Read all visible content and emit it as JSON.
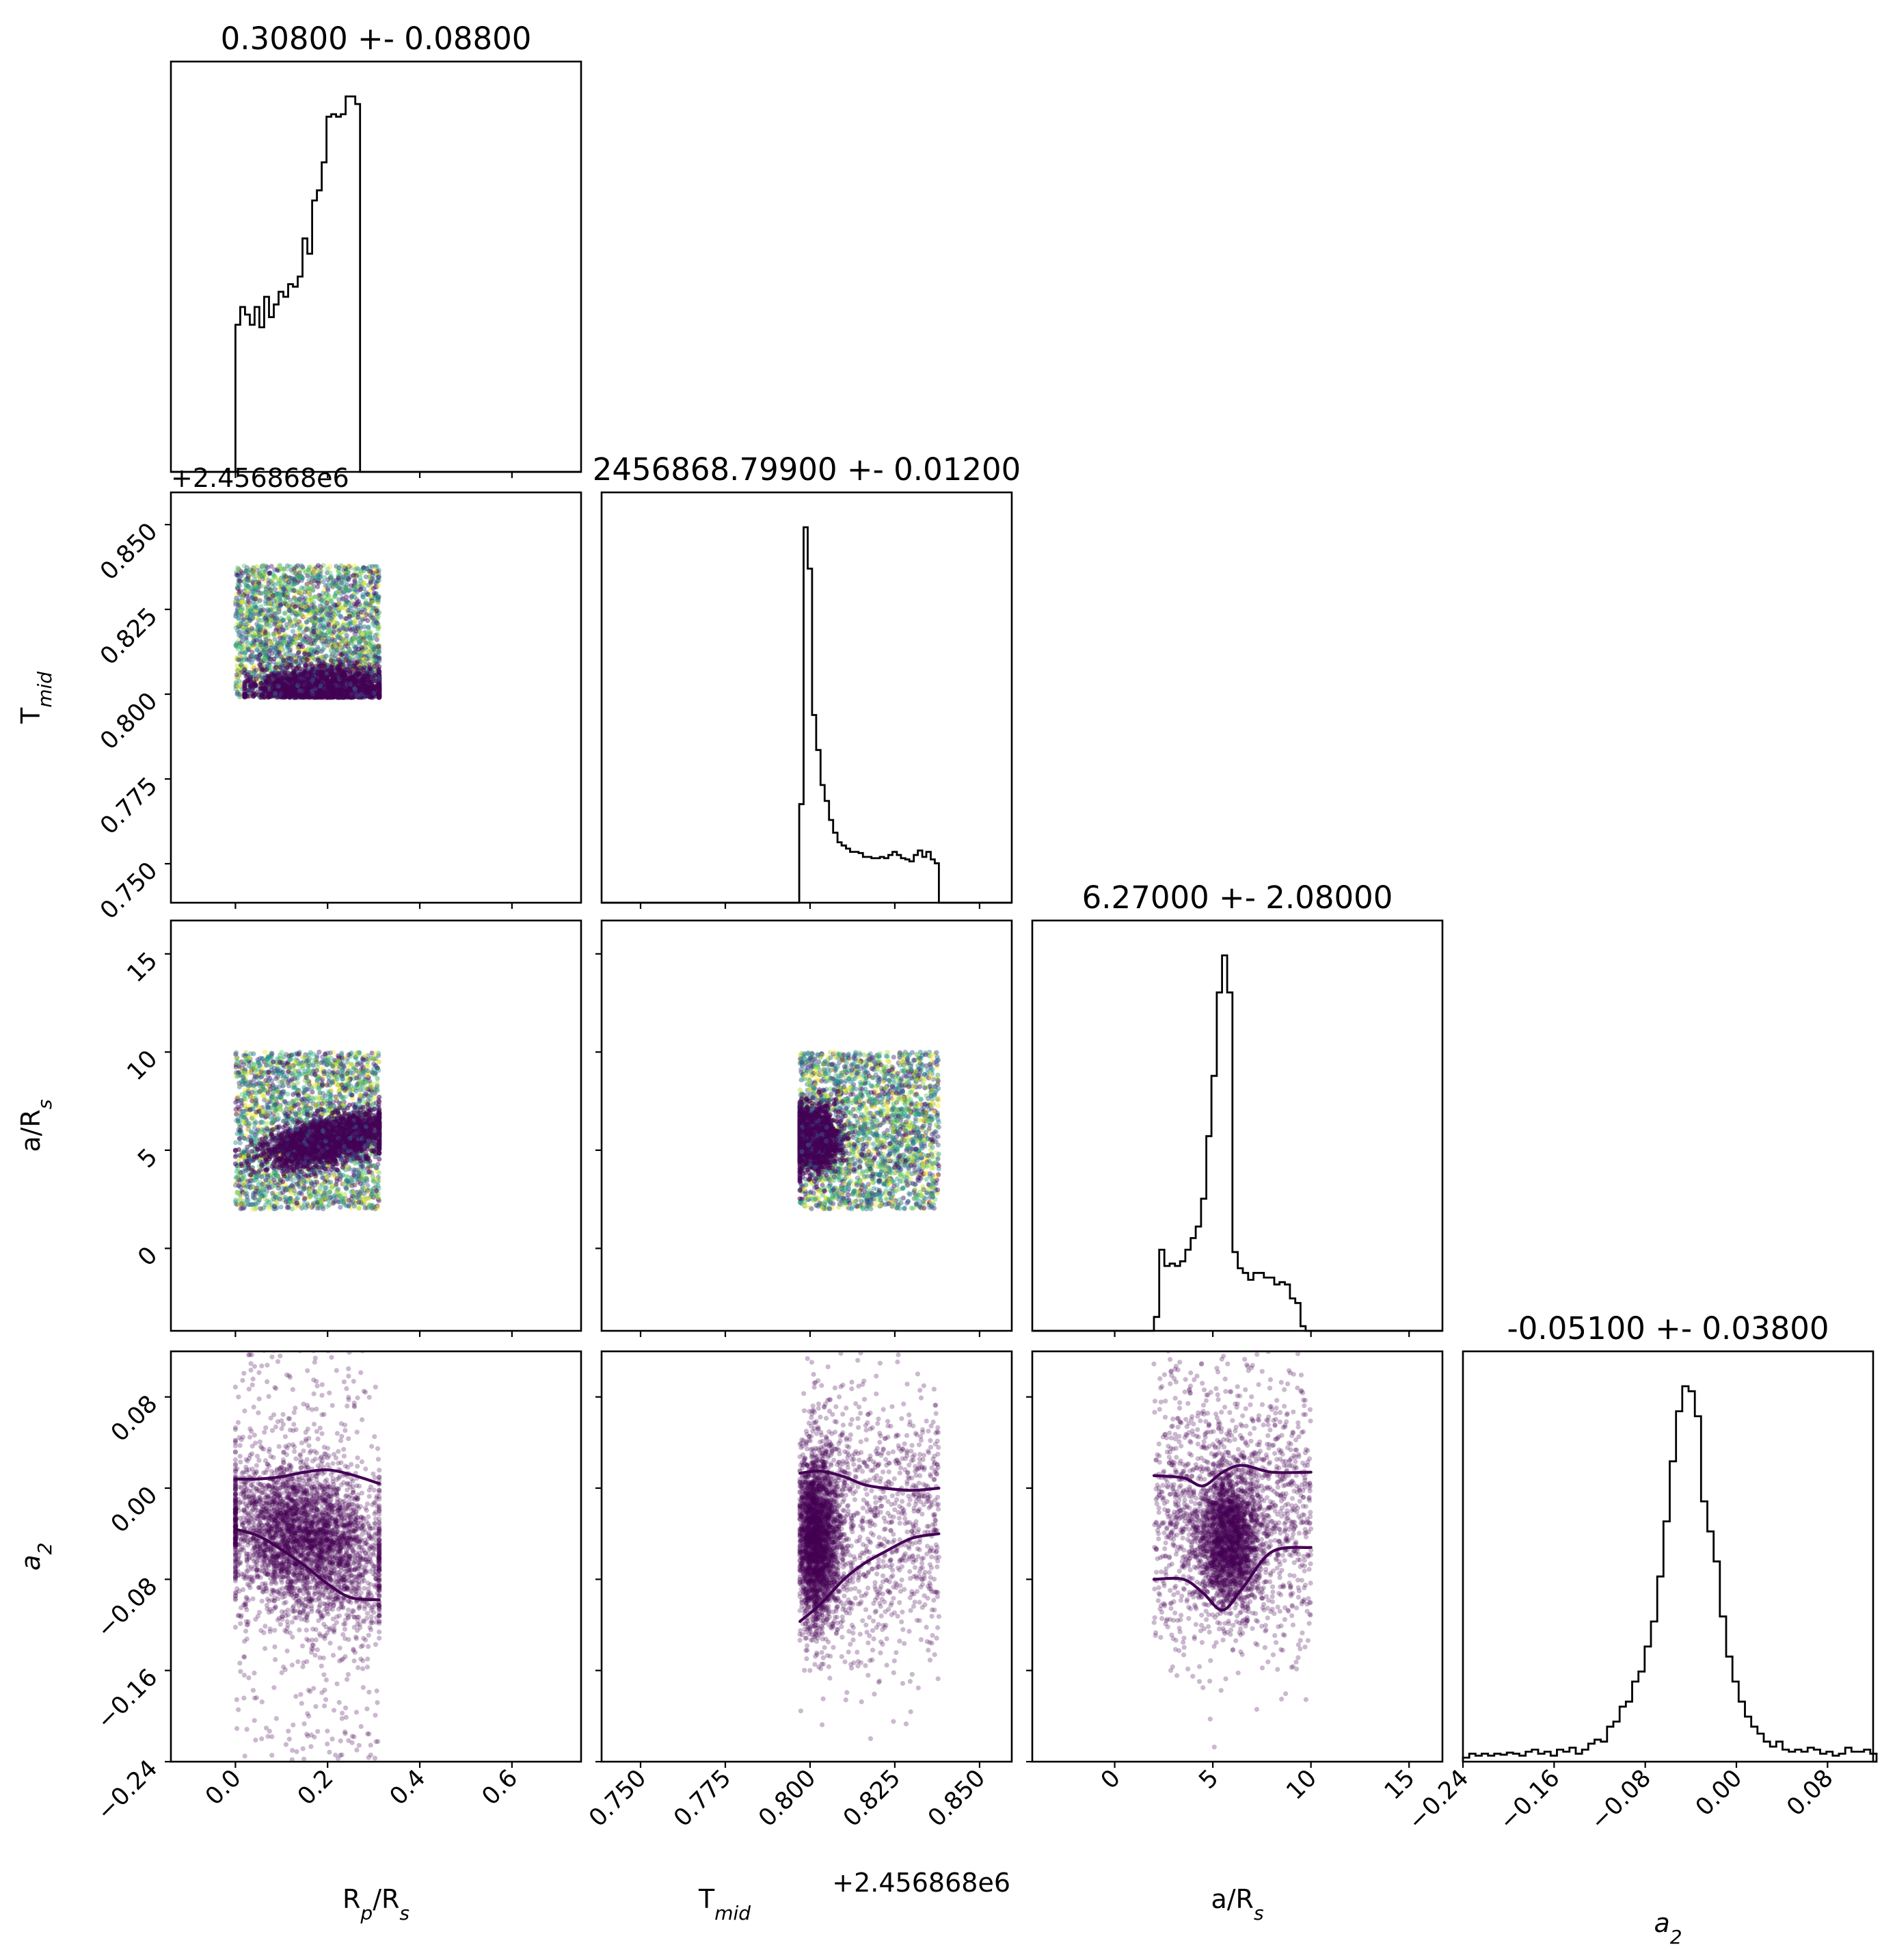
{
  "chart_data": {
    "type": "scatter",
    "layout": "corner",
    "parameters": [
      "R_p/R_s",
      "T_mid",
      "a/R_s",
      "a_2"
    ],
    "axis_labels": {
      "R_p/R_s": {
        "main": "R",
        "sub": "p",
        "tail": "/R",
        "sub2": "s"
      },
      "T_mid": {
        "main": "T",
        "sub": "mid"
      },
      "a/R_s": {
        "main": "a/R",
        "sub": "s"
      },
      "a_2": {
        "main": "a",
        "sub": "2",
        "italic": true
      }
    },
    "titles": [
      "0.30800 +- 0.08800",
      "2456868.79900 +- 0.01200",
      "6.27000 +- 2.08000",
      "-0.05100 +- 0.03800"
    ],
    "offset_text": "+2.456868e6",
    "ranges": {
      "R_p/R_s": [
        -0.14,
        0.75
      ],
      "T_mid": [
        0.7385,
        0.8595
      ],
      "a/R_s": [
        -4.2,
        16.7
      ],
      "a_2": [
        -0.24,
        0.12
      ]
    },
    "ticks": {
      "R_p/R_s": {
        "values": [
          0.0,
          0.2,
          0.4,
          0.6
        ],
        "labels": [
          "0.0",
          "0.2",
          "0.4",
          "0.6"
        ]
      },
      "T_mid": {
        "values": [
          0.75,
          0.775,
          0.8,
          0.825,
          0.85
        ],
        "labels": [
          "0.750",
          "0.775",
          "0.800",
          "0.825",
          "0.850"
        ]
      },
      "a/R_s": {
        "values": [
          0,
          5,
          10,
          15
        ],
        "labels": [
          "0",
          "5",
          "10",
          "15"
        ]
      },
      "a_2": {
        "values": [
          -0.24,
          -0.16,
          -0.08,
          0.0,
          0.08
        ],
        "labels": [
          "−0.24",
          "−0.16",
          "−0.08",
          "0.00",
          "0.08"
        ]
      }
    },
    "histograms": {
      "R_p/R_s": {
        "bin_edges": [
          0.0,
          0.0104,
          0.0208,
          0.0312,
          0.0416,
          0.052,
          0.0624,
          0.0728,
          0.0832,
          0.0936,
          0.104,
          0.1144,
          0.1248,
          0.1352,
          0.1456,
          0.156,
          0.1664,
          0.1768,
          0.1872,
          0.1976,
          0.208,
          0.2184,
          0.2288,
          0.2392,
          0.2496,
          0.26,
          0.2704,
          0.2808,
          0.2912,
          0.3016,
          0.312
        ],
        "counts": [
          290,
          325,
          310,
          290,
          325,
          285,
          345,
          305,
          330,
          355,
          345,
          370,
          365,
          385,
          460,
          430,
          535,
          555,
          610,
          700,
          705,
          700,
          705,
          740,
          740,
          725,
          0,
          0,
          0,
          0
        ]
      },
      "T_mid": {
        "bin_edges": [
          0.7968,
          0.7981,
          0.7993,
          0.8006,
          0.8018,
          0.8031,
          0.8043,
          0.8056,
          0.8068,
          0.8081,
          0.8093,
          0.8106,
          0.8118,
          0.8131,
          0.8143,
          0.8156,
          0.8168,
          0.8181,
          0.8193,
          0.8206,
          0.8218,
          0.8231,
          0.8243,
          0.8256,
          0.8268,
          0.8281,
          0.8293,
          0.8306,
          0.8318,
          0.8331,
          0.8343,
          0.8356,
          0.8368,
          0.838
        ],
        "counts": [
          155,
          590,
          525,
          295,
          240,
          185,
          160,
          130,
          110,
          95,
          90,
          85,
          80,
          80,
          78,
          72,
          72,
          70,
          70,
          72,
          70,
          75,
          80,
          75,
          70,
          68,
          65,
          75,
          82,
          72,
          80,
          68,
          62
        ]
      },
      "a/R_s": {
        "bin_edges": [
          2.0,
          2.27,
          2.53,
          2.8,
          3.07,
          3.33,
          3.6,
          3.87,
          4.13,
          4.4,
          4.67,
          4.93,
          5.2,
          5.47,
          5.73,
          6.0,
          6.27,
          6.53,
          6.8,
          7.07,
          7.33,
          7.6,
          7.87,
          8.13,
          8.4,
          8.67,
          8.93,
          9.2,
          9.47,
          9.73,
          10.0
        ],
        "counts": [
          30,
          175,
          140,
          145,
          140,
          150,
          175,
          200,
          225,
          285,
          420,
          550,
          730,
          810,
          730,
          170,
          135,
          125,
          110,
          125,
          125,
          115,
          115,
          100,
          105,
          100,
          70,
          60,
          10,
          0
        ]
      },
      "a_2": {
        "bin_edges": [
          -0.24,
          -0.2345,
          -0.229,
          -0.2235,
          -0.218,
          -0.2125,
          -0.207,
          -0.2015,
          -0.196,
          -0.1905,
          -0.185,
          -0.1795,
          -0.174,
          -0.1685,
          -0.163,
          -0.1575,
          -0.152,
          -0.1465,
          -0.141,
          -0.1355,
          -0.13,
          -0.1245,
          -0.119,
          -0.1135,
          -0.108,
          -0.1025,
          -0.097,
          -0.0915,
          -0.086,
          -0.0805,
          -0.075,
          -0.0695,
          -0.064,
          -0.0585,
          -0.053,
          -0.0475,
          -0.042,
          -0.0365,
          -0.031,
          -0.0255,
          -0.02,
          -0.0145,
          -0.009,
          -0.0035,
          0.002,
          0.0075,
          0.013,
          0.0185,
          0.024,
          0.0295,
          0.035,
          0.0405,
          0.046,
          0.0515,
          0.057,
          0.0625,
          0.068,
          0.0735,
          0.079,
          0.0845,
          0.09,
          0.0955,
          0.101,
          0.1065,
          0.112,
          0.1175,
          0.123
        ],
        "counts": [
          4,
          8,
          6,
          8,
          6,
          8,
          7,
          9,
          8,
          6,
          10,
          12,
          8,
          10,
          6,
          12,
          10,
          14,
          8,
          12,
          18,
          22,
          20,
          35,
          40,
          55,
          60,
          80,
          90,
          115,
          140,
          185,
          240,
          300,
          350,
          375,
          370,
          345,
          260,
          230,
          200,
          145,
          105,
          80,
          60,
          45,
          35,
          28,
          20,
          15,
          20,
          12,
          10,
          12,
          10,
          14,
          12,
          8,
          10,
          6,
          8,
          14,
          10,
          10,
          12,
          8
        ]
      }
    },
    "scatter": [
      {
        "x": "R_p/R_s",
        "y": "T_mid",
        "x_range": [
          0.0,
          0.312
        ],
        "y_range": [
          0.799,
          0.838
        ],
        "color_scale": "viridis"
      },
      {
        "x": "R_p/R_s",
        "y": "a/R_s",
        "x_range": [
          0.0,
          0.312
        ],
        "y_range": [
          2.0,
          10.0
        ],
        "color_scale": "viridis"
      },
      {
        "x": "T_mid",
        "y": "a/R_s",
        "x_range": [
          0.797,
          0.838
        ],
        "y_range": [
          2.0,
          10.0
        ],
        "color_scale": "viridis"
      },
      {
        "x": "R_p/R_s",
        "y": "a_2",
        "x_range": [
          0.0,
          0.312
        ],
        "y_range": [
          -0.24,
          0.12
        ],
        "color": "#440154"
      },
      {
        "x": "T_mid",
        "y": "a_2",
        "x_range": [
          0.797,
          0.838
        ],
        "y_range": [
          -0.24,
          0.12
        ],
        "color": "#440154"
      },
      {
        "x": "a/R_s",
        "y": "a_2",
        "x_range": [
          2.0,
          10.0
        ],
        "y_range": [
          -0.24,
          0.12
        ],
        "color": "#440154"
      }
    ],
    "contours": [
      {
        "x": "R_p/R_s",
        "y": "a_2",
        "upper": [
          [
            0.0,
            0.008
          ],
          [
            0.05,
            0.008
          ],
          [
            0.1,
            0.01
          ],
          [
            0.15,
            0.014
          ],
          [
            0.2,
            0.016
          ],
          [
            0.25,
            0.012
          ],
          [
            0.312,
            0.004
          ]
        ],
        "lower": [
          [
            0.0,
            -0.036
          ],
          [
            0.05,
            -0.042
          ],
          [
            0.1,
            -0.054
          ],
          [
            0.15,
            -0.068
          ],
          [
            0.2,
            -0.084
          ],
          [
            0.25,
            -0.096
          ],
          [
            0.312,
            -0.098
          ]
        ]
      },
      {
        "x": "T_mid",
        "y": "a_2",
        "upper": [
          [
            0.797,
            0.013
          ],
          [
            0.803,
            0.015
          ],
          [
            0.81,
            0.01
          ],
          [
            0.816,
            0.003
          ],
          [
            0.822,
            0.0
          ],
          [
            0.83,
            -0.002
          ],
          [
            0.838,
            0.0
          ]
        ],
        "lower": [
          [
            0.797,
            -0.117
          ],
          [
            0.803,
            -0.102
          ],
          [
            0.81,
            -0.08
          ],
          [
            0.816,
            -0.066
          ],
          [
            0.822,
            -0.056
          ],
          [
            0.83,
            -0.044
          ],
          [
            0.838,
            -0.04
          ]
        ]
      },
      {
        "x": "a/R_s",
        "y": "a_2",
        "upper": [
          [
            2.0,
            0.011
          ],
          [
            3.5,
            0.009
          ],
          [
            4.5,
            0.002
          ],
          [
            5.5,
            0.014
          ],
          [
            6.5,
            0.02
          ],
          [
            8.0,
            0.014
          ],
          [
            10.0,
            0.014
          ]
        ],
        "lower": [
          [
            2.0,
            -0.08
          ],
          [
            3.5,
            -0.08
          ],
          [
            4.5,
            -0.092
          ],
          [
            5.5,
            -0.107
          ],
          [
            6.5,
            -0.088
          ],
          [
            8.0,
            -0.056
          ],
          [
            10.0,
            -0.052
          ]
        ]
      }
    ]
  }
}
